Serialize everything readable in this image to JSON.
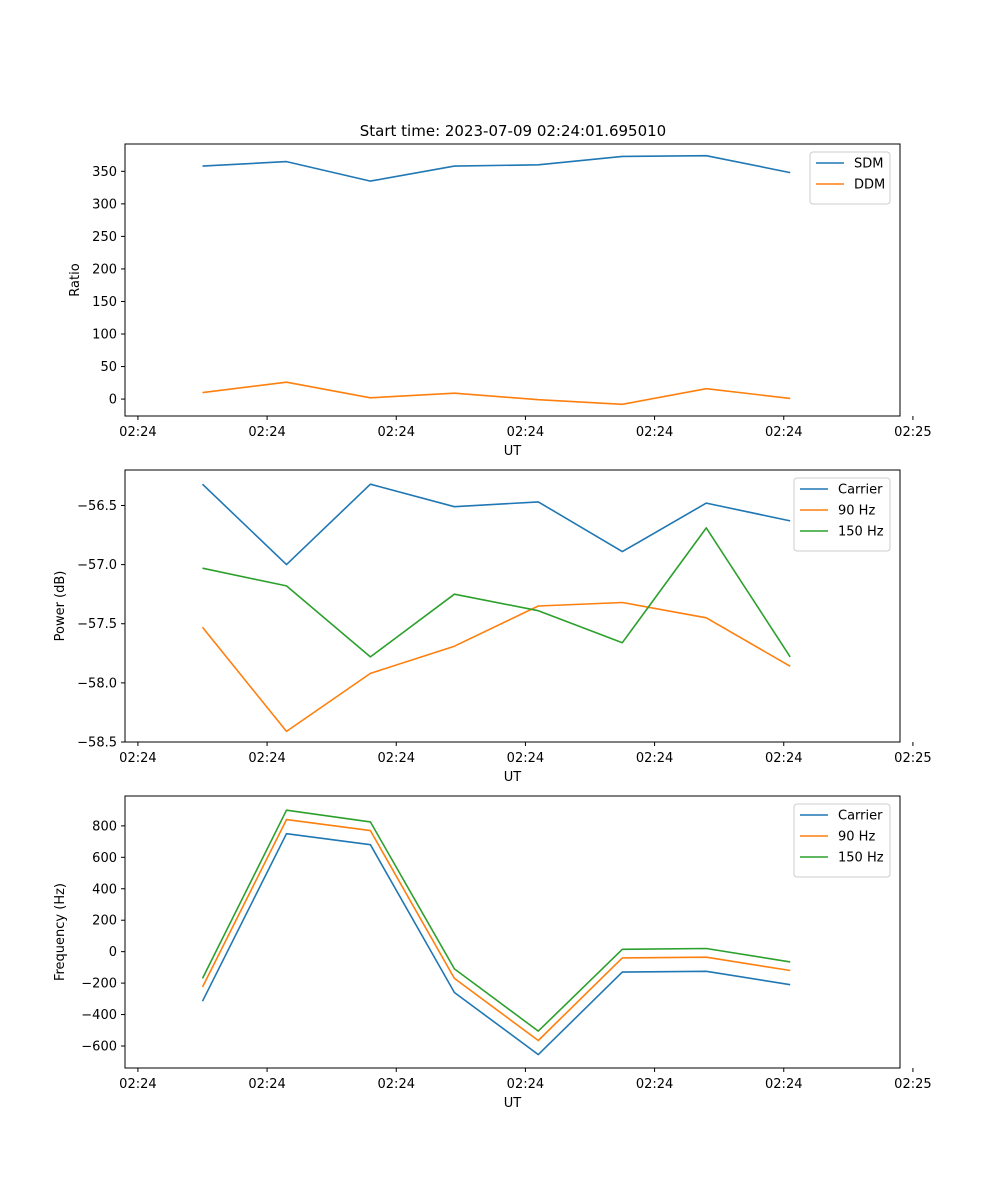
{
  "figure_title": "Start time: 2023-07-09 02:24:01.695010",
  "chart_data": [
    {
      "type": "line",
      "title": "Start time: 2023-07-09 02:24:01.695010",
      "xlabel": "UT",
      "ylabel": "Ratio",
      "x": [
        0.5,
        1.15,
        1.8,
        2.45,
        3.1,
        3.75,
        4.4,
        5.05
      ],
      "xlim": [
        -0.1,
        5.9
      ],
      "xticks": [
        0,
        1,
        2,
        3,
        4,
        5,
        6
      ],
      "xtick_labels": [
        "02:24",
        "02:24",
        "02:24",
        "02:24",
        "02:24",
        "02:24",
        "02:25"
      ],
      "ylim": [
        -26,
        392
      ],
      "yticks": [
        0,
        50,
        100,
        150,
        200,
        250,
        300,
        350
      ],
      "legend": "top-right",
      "series": [
        {
          "name": "SDM",
          "color": "#1f77b4",
          "values": [
            358,
            365,
            335,
            358,
            360,
            373,
            374,
            348
          ]
        },
        {
          "name": "DDM",
          "color": "#ff7f0e",
          "values": [
            10,
            26,
            2,
            9,
            -1,
            -8,
            16,
            1
          ]
        }
      ]
    },
    {
      "type": "line",
      "title": "",
      "xlabel": "UT",
      "ylabel": "Power (dB)",
      "x": [
        0.5,
        1.15,
        1.8,
        2.45,
        3.1,
        3.75,
        4.4,
        5.05
      ],
      "xlim": [
        -0.1,
        5.9
      ],
      "xticks": [
        0,
        1,
        2,
        3,
        4,
        5,
        6
      ],
      "xtick_labels": [
        "02:24",
        "02:24",
        "02:24",
        "02:24",
        "02:24",
        "02:24",
        "02:25"
      ],
      "ylim": [
        -58.5,
        -56.2
      ],
      "yticks": [
        -58.5,
        -58.0,
        -57.5,
        -57.0,
        -56.5
      ],
      "ytick_labels": [
        "−58.5",
        "−58.0",
        "−57.5",
        "−57.0",
        "−56.5"
      ],
      "legend": "top-right",
      "series": [
        {
          "name": "Carrier",
          "color": "#1f77b4",
          "values": [
            -56.32,
            -57.0,
            -56.32,
            -56.51,
            -56.47,
            -56.89,
            -56.48,
            -56.63
          ]
        },
        {
          "name": "90 Hz",
          "color": "#ff7f0e",
          "values": [
            -57.53,
            -58.41,
            -57.92,
            -57.69,
            -57.35,
            -57.32,
            -57.45,
            -57.86
          ]
        },
        {
          "name": "150 Hz",
          "color": "#2ca02c",
          "values": [
            -57.03,
            -57.18,
            -57.78,
            -57.25,
            -57.39,
            -57.66,
            -56.69,
            -57.78
          ]
        }
      ]
    },
    {
      "type": "line",
      "title": "",
      "xlabel": "UT",
      "ylabel": "Frequency (Hz)",
      "x": [
        0.5,
        1.15,
        1.8,
        2.45,
        3.1,
        3.75,
        4.4,
        5.05
      ],
      "xlim": [
        -0.1,
        5.9
      ],
      "xticks": [
        0,
        1,
        2,
        3,
        4,
        5,
        6
      ],
      "xtick_labels": [
        "02:24",
        "02:24",
        "02:24",
        "02:24",
        "02:24",
        "02:24",
        "02:25"
      ],
      "ylim": [
        -740,
        990
      ],
      "yticks": [
        -600,
        -400,
        -200,
        0,
        200,
        400,
        600,
        800
      ],
      "ytick_labels": [
        "−600",
        "−400",
        "−200",
        "0",
        "200",
        "400",
        "600",
        "800"
      ],
      "legend": "top-right",
      "series": [
        {
          "name": "Carrier",
          "color": "#1f77b4",
          "values": [
            -315,
            750,
            680,
            -260,
            -655,
            -130,
            -125,
            -210
          ]
        },
        {
          "name": "90 Hz",
          "color": "#ff7f0e",
          "values": [
            -225,
            840,
            770,
            -170,
            -565,
            -40,
            -35,
            -120
          ]
        },
        {
          "name": "150 Hz",
          "color": "#2ca02c",
          "values": [
            -170,
            900,
            825,
            -110,
            -505,
            15,
            20,
            -65
          ]
        }
      ]
    }
  ]
}
